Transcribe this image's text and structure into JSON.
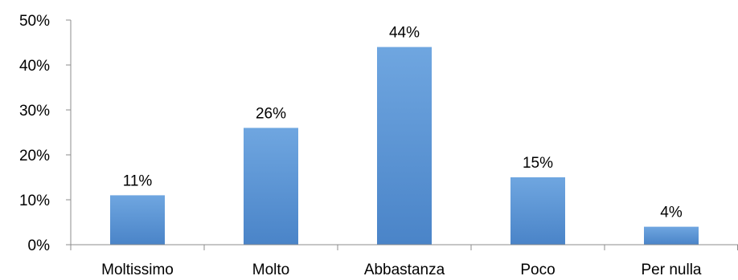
{
  "chart_data": {
    "type": "bar",
    "categories": [
      "Moltissimo",
      "Molto",
      "Abbastanza",
      "Poco",
      "Per nulla"
    ],
    "values": [
      11,
      26,
      44,
      15,
      4
    ],
    "data_labels": [
      "11%",
      "26%",
      "44%",
      "15%",
      "4%"
    ],
    "y_ticks": [
      "0%",
      "10%",
      "20%",
      "30%",
      "40%",
      "50%"
    ],
    "ylim": [
      0,
      50
    ],
    "title": "",
    "xlabel": "",
    "ylabel": "",
    "grid": false,
    "legend": "none",
    "colors": {
      "bar_top": "#6fa6e0",
      "bar_bottom": "#4a84c8",
      "axis": "#8c8c8c"
    }
  }
}
